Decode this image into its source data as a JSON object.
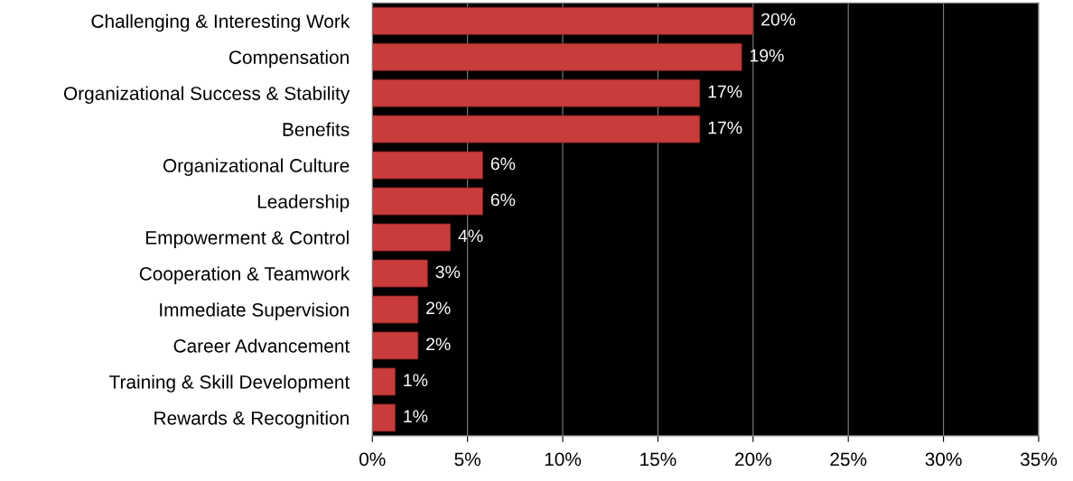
{
  "chart_data": {
    "type": "bar",
    "orientation": "horizontal",
    "categories": [
      "Challenging & Interesting Work",
      "Compensation",
      "Organizational Success & Stability",
      "Benefits",
      "Organizational Culture",
      "Leadership",
      "Empowerment & Control",
      "Cooperation & Teamwork",
      "Immediate Supervision",
      "Career Advancement",
      "Training & Skill Development",
      "Rewards & Recognition"
    ],
    "series": [
      {
        "color": "#c83c3c",
        "values": [
          20,
          19.4,
          17.2,
          17.2,
          5.8,
          5.8,
          4.1,
          2.9,
          2.4,
          2.4,
          1.2,
          1.2
        ],
        "value_labels": [
          "20%",
          "19%",
          "17%",
          "17%",
          "6%",
          "6%",
          "4%",
          "3%",
          "2%",
          "2%",
          "1%",
          "1%"
        ]
      }
    ],
    "xlim": [
      0,
      35
    ],
    "xticks": [
      {
        "value": 0,
        "label": "0%"
      },
      {
        "value": 5,
        "label": "5%"
      },
      {
        "value": 10,
        "label": "10%"
      },
      {
        "value": 15,
        "label": "15%"
      },
      {
        "value": 20,
        "label": "20%"
      },
      {
        "value": 25,
        "label": "25%"
      },
      {
        "value": 30,
        "label": "30%"
      },
      {
        "value": 35,
        "label": "35%"
      }
    ],
    "grid": "x"
  }
}
